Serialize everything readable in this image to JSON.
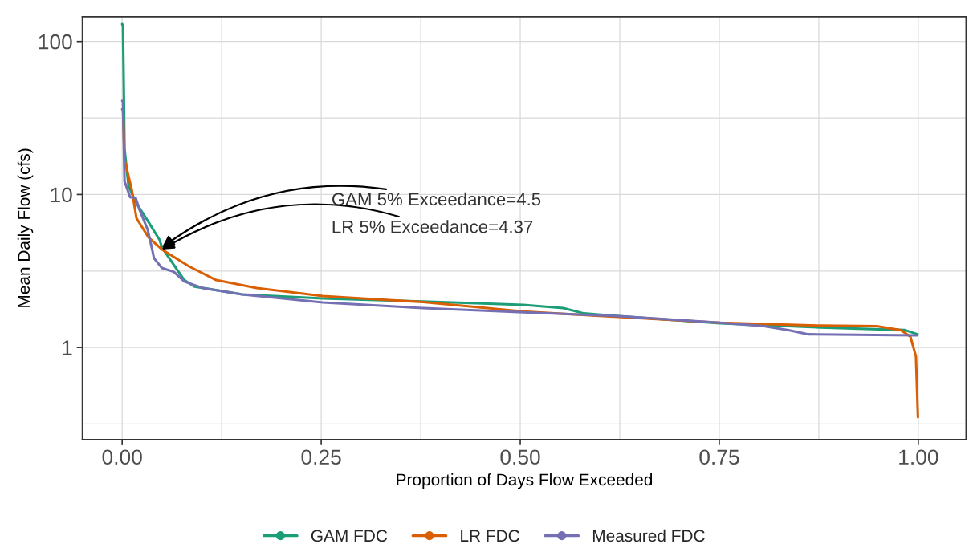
{
  "chart_data": {
    "type": "line",
    "xlabel": "Proportion of Days Flow Exceeded",
    "ylabel": "Mean Daily Flow (cfs)",
    "log": "y",
    "xlim": [
      -0.05,
      1.06
    ],
    "ylim": [
      0.25,
      145
    ],
    "xticks": [
      {
        "value": 0,
        "label": "0.00"
      },
      {
        "value": 0.125,
        "label": null
      },
      {
        "value": 0.25,
        "label": "0.25"
      },
      {
        "value": 0.375,
        "label": null
      },
      {
        "value": 0.5,
        "label": "0.50"
      },
      {
        "value": 0.625,
        "label": null
      },
      {
        "value": 0.75,
        "label": "0.75"
      },
      {
        "value": 0.875,
        "label": null
      },
      {
        "value": 1,
        "label": "1.00"
      }
    ],
    "yticks": [
      {
        "value": 0.3162,
        "label": null
      },
      1,
      {
        "value": 3.162,
        "label": null
      },
      10,
      {
        "value": 31.62,
        "label": null
      },
      100
    ],
    "grid": true,
    "legend": "bottom",
    "series": [
      {
        "name": "GAM FDC",
        "color": "#1b9e77",
        "x": [
          0,
          0.001,
          0.002,
          0.003,
          0.008,
          0.017,
          0.03,
          0.047,
          0.05,
          0.078,
          0.091,
          0.151,
          0.252,
          0.378,
          0.504,
          0.554,
          0.58,
          0.627,
          0.751,
          0.877,
          0.983,
          0.999
        ],
        "values": [
          130,
          125,
          52,
          19.8,
          11.4,
          8.9,
          7.0,
          5.05,
          4.5,
          2.76,
          2.5,
          2.22,
          2.09,
          2.0,
          1.9,
          1.81,
          1.67,
          1.6,
          1.44,
          1.35,
          1.3,
          1.22
        ]
      },
      {
        "name": "LR FDC",
        "color": "#d95f02",
        "x": [
          0,
          0.001,
          0.003,
          0.012,
          0.018,
          0.033,
          0.05,
          0.084,
          0.118,
          0.169,
          0.252,
          0.378,
          0.504,
          0.627,
          0.751,
          0.877,
          0.948,
          0.978,
          0.99,
          0.997,
          0.9995
        ],
        "values": [
          36,
          36.2,
          16.9,
          10.8,
          7.0,
          5.25,
          4.37,
          3.39,
          2.76,
          2.45,
          2.17,
          1.98,
          1.72,
          1.58,
          1.45,
          1.39,
          1.38,
          1.3,
          1.18,
          0.875,
          0.35
        ]
      },
      {
        "name": "Measured FDC",
        "color": "#7570b3",
        "x": [
          0,
          0.001,
          0.003,
          0.01,
          0.017,
          0.022,
          0.032,
          0.038,
          0.04,
          0.05,
          0.065,
          0.078,
          0.101,
          0.151,
          0.252,
          0.378,
          0.504,
          0.627,
          0.751,
          0.806,
          0.837,
          0.862,
          0.998
        ],
        "values": [
          40.9,
          40.9,
          12.2,
          9.6,
          9.5,
          7.9,
          5.9,
          4.3,
          3.83,
          3.31,
          3.12,
          2.7,
          2.45,
          2.22,
          1.97,
          1.81,
          1.7,
          1.6,
          1.45,
          1.38,
          1.3,
          1.22,
          1.2
        ]
      }
    ],
    "annotations": [
      {
        "text": "GAM 5% Exceedance=4.5",
        "x": 0.05,
        "y": 4.5
      },
      {
        "text": "LR 5% Exceedance=4.37",
        "x": 0.05,
        "y": 4.37
      }
    ]
  }
}
